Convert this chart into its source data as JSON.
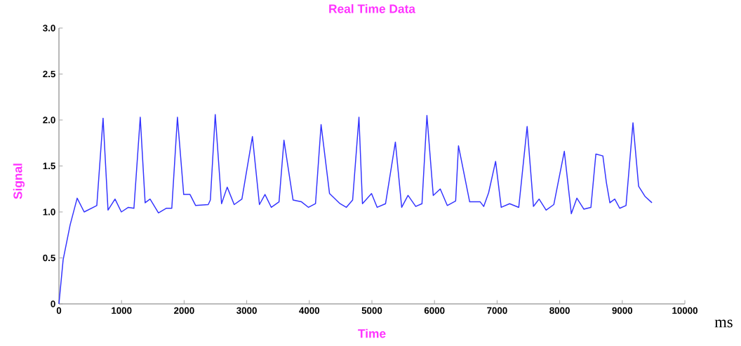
{
  "chart_data": {
    "type": "line",
    "title": "Real Time Data",
    "xlabel": "Time",
    "ylabel": "Signal",
    "annotations": [
      "ms"
    ],
    "x": [
      0,
      67,
      179,
      291,
      403,
      605,
      705,
      784,
      896,
      997,
      1109,
      1198,
      1299,
      1377,
      1456,
      1590,
      1713,
      1803,
      1893,
      1993,
      2094,
      2184,
      2385,
      2419,
      2497,
      2598,
      2688,
      2800,
      2923,
      3091,
      3203,
      3292,
      3393,
      3516,
      3595,
      3740,
      3875,
      3987,
      4099,
      4188,
      4323,
      4491,
      4591,
      4692,
      4793,
      4849,
      4994,
      5084,
      5218,
      5375,
      5476,
      5577,
      5700,
      5800,
      5879,
      5980,
      6092,
      6204,
      6338,
      6383,
      6562,
      6730,
      6786,
      6865,
      6976,
      7066,
      7200,
      7346,
      7480,
      7581,
      7671,
      7783,
      7906,
      8074,
      8186,
      8275,
      8387,
      8499,
      8578,
      8690,
      8746,
      8802,
      8880,
      8959,
      9060,
      9171,
      9261,
      9362,
      9474
    ],
    "series": [
      {
        "color": "#3333ff",
        "values": [
          0,
          0.48,
          0.86,
          1.15,
          1.0,
          1.07,
          2.02,
          1.02,
          1.14,
          1.0,
          1.05,
          1.04,
          2.03,
          1.1,
          1.14,
          0.99,
          1.04,
          1.04,
          2.03,
          1.19,
          1.19,
          1.07,
          1.08,
          1.13,
          2.06,
          1.09,
          1.27,
          1.08,
          1.14,
          1.82,
          1.08,
          1.19,
          1.05,
          1.11,
          1.78,
          1.13,
          1.11,
          1.05,
          1.09,
          1.95,
          1.2,
          1.09,
          1.05,
          1.13,
          2.03,
          1.09,
          1.2,
          1.05,
          1.09,
          1.76,
          1.05,
          1.18,
          1.06,
          1.09,
          2.05,
          1.18,
          1.25,
          1.07,
          1.12,
          1.72,
          1.11,
          1.11,
          1.06,
          1.21,
          1.55,
          1.05,
          1.09,
          1.05,
          1.93,
          1.06,
          1.14,
          1.02,
          1.08,
          1.66,
          0.98,
          1.15,
          1.03,
          1.05,
          1.63,
          1.61,
          1.32,
          1.1,
          1.14,
          1.04,
          1.07,
          1.97,
          1.28,
          1.17,
          1.1
        ]
      }
    ],
    "xlim": [
      0,
      10000
    ],
    "ylim": [
      0,
      3
    ],
    "xticks": [
      0,
      1000,
      2000,
      3000,
      4000,
      5000,
      6000,
      7000,
      8000,
      9000,
      10000
    ],
    "yticks": [
      0,
      0.5,
      {
        "value": 1,
        "label": "1.0"
      },
      1.5,
      {
        "value": 2,
        "label": "2.0"
      },
      2.5,
      {
        "value": 3,
        "label": "3.0"
      }
    ],
    "line_style": "solid"
  }
}
